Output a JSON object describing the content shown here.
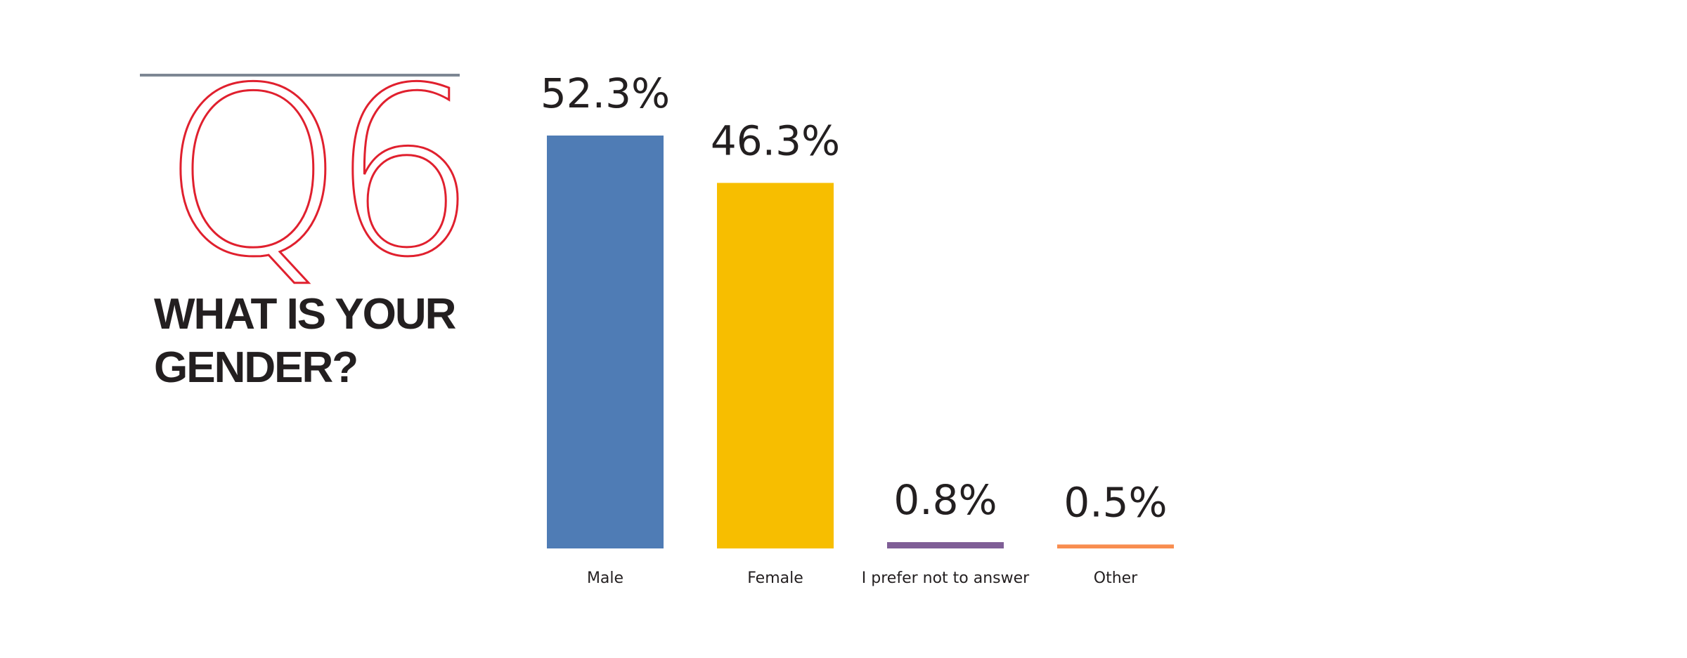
{
  "chart_data": {
    "type": "bar",
    "label": "Q6",
    "title": "WHAT IS YOUR GENDER?",
    "categories": [
      "Male",
      "Female",
      "I prefer not to answer",
      "Other"
    ],
    "values": [
      52.3,
      46.3,
      0.8,
      0.5
    ],
    "value_labels": [
      "52.3%",
      "46.3%",
      "0.8%",
      "0.5%"
    ],
    "colors": [
      "#4f7cb5",
      "#f7be00",
      "#7f5e96",
      "#f88d4f"
    ]
  }
}
